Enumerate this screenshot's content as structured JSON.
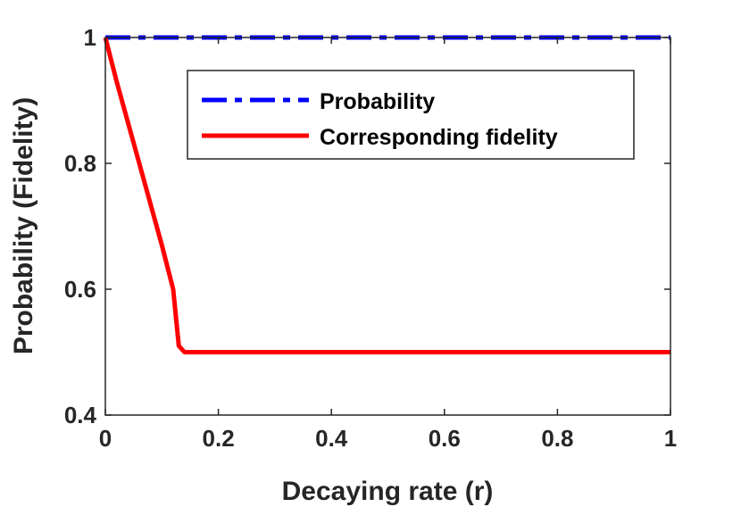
{
  "chart_data": {
    "type": "line",
    "title": "",
    "xlabel": "Decaying rate (r)",
    "ylabel": "Probability (Fidelity)",
    "xlim": [
      0,
      1
    ],
    "ylim": [
      0.4,
      1
    ],
    "xticks": [
      0,
      0.2,
      0.4,
      0.6,
      0.8,
      1
    ],
    "xtick_labels": [
      "0",
      "0.2",
      "0.4",
      "0.6",
      "0.8",
      "1"
    ],
    "yticks": [
      0.4,
      0.6,
      0.8,
      1
    ],
    "ytick_labels": [
      "0.4",
      "0.6",
      "0.8",
      "1"
    ],
    "grid": false,
    "legend_position": "top-right",
    "series": [
      {
        "name": "Probability",
        "color": "#0000ff",
        "style": "dash-dot",
        "x": [
          0,
          0.25,
          0.5,
          0.75,
          1
        ],
        "values": [
          1,
          1,
          1,
          1,
          1
        ]
      },
      {
        "name": "Corresponding fidelity",
        "color": "#ff0000",
        "style": "solid",
        "x": [
          0,
          0.02,
          0.04,
          0.06,
          0.08,
          0.1,
          0.12,
          0.13,
          0.14,
          0.2,
          0.4,
          0.6,
          0.8,
          1
        ],
        "values": [
          1,
          0.93,
          0.865,
          0.8,
          0.735,
          0.67,
          0.6,
          0.51,
          0.5,
          0.5,
          0.5,
          0.5,
          0.5,
          0.5
        ]
      }
    ]
  }
}
